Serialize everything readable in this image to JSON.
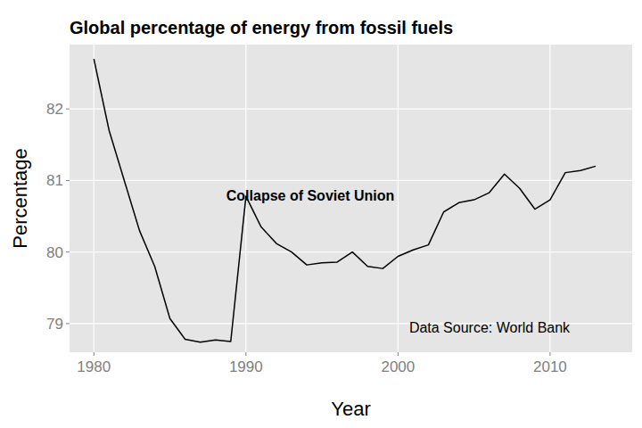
{
  "chart_data": {
    "type": "line",
    "title": "Global percentage of energy from fossil fuels",
    "x_label": "Year",
    "y_label": "Percentage",
    "annotations": [
      "Collapse of Soviet Union",
      "Data Source: World Bank"
    ],
    "x": [
      1980,
      1981,
      1982,
      1983,
      1984,
      1985,
      1986,
      1987,
      1988,
      1989,
      1990,
      1991,
      1992,
      1993,
      1994,
      1995,
      1996,
      1997,
      1998,
      1999,
      2000,
      2001,
      2002,
      2003,
      2004,
      2005,
      2006,
      2007,
      2008,
      2009,
      2010,
      2011,
      2012,
      2013
    ],
    "values": [
      82.7,
      81.7,
      81.0,
      80.3,
      79.8,
      79.07,
      78.78,
      78.74,
      78.77,
      78.75,
      80.78,
      80.35,
      80.12,
      80.0,
      79.82,
      79.85,
      79.86,
      80.0,
      79.8,
      79.77,
      79.94,
      80.03,
      80.1,
      80.56,
      80.69,
      80.73,
      80.83,
      81.09,
      80.89,
      80.6,
      80.73,
      81.11,
      81.14,
      81.2
    ],
    "color": "#000000",
    "xlim": [
      1978.4,
      2015.4
    ],
    "ylim": [
      78.6,
      82.9
    ],
    "xticks": [
      1980,
      1990,
      2000,
      2010
    ],
    "yticks": [
      79,
      80,
      81,
      82
    ],
    "grid": true
  }
}
